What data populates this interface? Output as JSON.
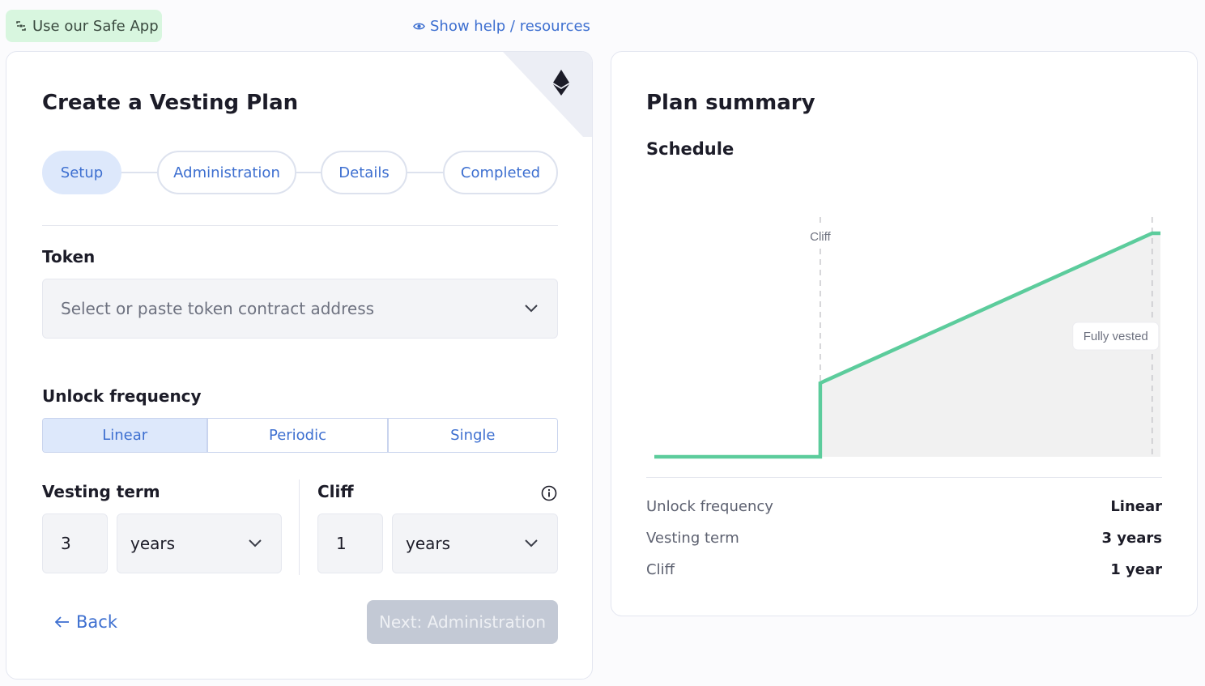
{
  "topbar": {
    "safe_app_label": "Use our Safe App",
    "help_label": "Show help / resources"
  },
  "form": {
    "title": "Create a Vesting Plan",
    "steps": [
      {
        "label": "Setup",
        "active": true
      },
      {
        "label": "Administration",
        "active": false
      },
      {
        "label": "Details",
        "active": false
      },
      {
        "label": "Completed",
        "active": false
      }
    ],
    "token": {
      "label": "Token",
      "placeholder": "Select or paste token contract address"
    },
    "unlock_frequency": {
      "label": "Unlock frequency",
      "options": [
        "Linear",
        "Periodic",
        "Single"
      ],
      "selected": "Linear"
    },
    "vesting_term": {
      "label": "Vesting term",
      "value": "3",
      "unit": "years"
    },
    "cliff": {
      "label": "Cliff",
      "value": "1",
      "unit": "years"
    },
    "back_label": "Back",
    "next_label": "Next: Administration"
  },
  "summary": {
    "title": "Plan summary",
    "schedule_label": "Schedule",
    "rows": [
      {
        "key": "Unlock frequency",
        "value": "Linear"
      },
      {
        "key": "Vesting term",
        "value": "3 years"
      },
      {
        "key": "Cliff",
        "value": "1 year"
      }
    ]
  },
  "chart_data": {
    "type": "line",
    "x": [
      0,
      1,
      1,
      3,
      3.05
    ],
    "y": [
      0,
      0,
      0.33,
      1,
      1
    ],
    "xlim": [
      0,
      3.05
    ],
    "ylim": [
      0,
      1
    ],
    "markers": [
      {
        "label": "Cliff",
        "x": 1
      },
      {
        "label": "Fully vested",
        "x": 3
      }
    ],
    "line_color": "#5ccc9c",
    "fill_color": "#f1f1f1"
  },
  "colors": {
    "accent": "#3d6fd0",
    "active_bg": "#dde8fb",
    "safe_pill_bg": "#d8f6df",
    "disabled_btn": "#c3c9d5",
    "chart_line": "#5ccc9c"
  }
}
